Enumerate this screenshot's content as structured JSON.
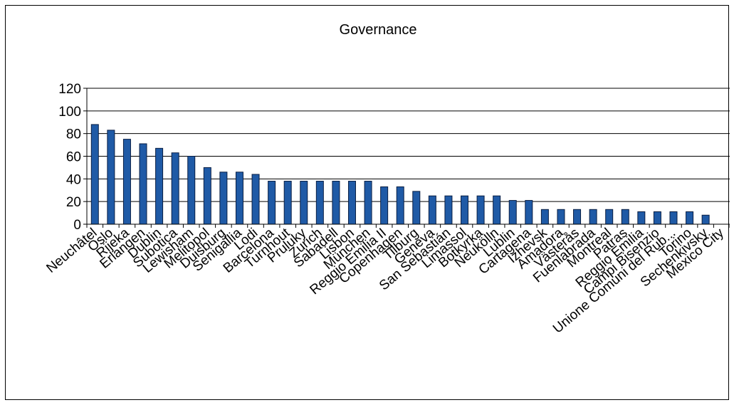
{
  "chart_data": {
    "type": "bar",
    "title": "Governance",
    "xlabel": "",
    "ylabel": "",
    "ylim": [
      0,
      120
    ],
    "yticks": [
      "0",
      "20",
      "40",
      "60",
      "80",
      "100",
      "120"
    ],
    "grid": true,
    "legend": "none",
    "bar_color": "#1f5aa6",
    "categories": [
      "Neuchâtel",
      "Oslo",
      "Rijeka",
      "Erlangen",
      "Dublin",
      "Subotica",
      "Lewisham",
      "Melitopol",
      "Duisburg",
      "Senigallia",
      "Lodi",
      "Barcelona",
      "Turnhout",
      "Pruluky",
      "Zurich",
      "Sabadell",
      "Lisbon",
      "München",
      "Reggio Emilia II",
      "Copenhagen",
      "Tilburg",
      "Geneva",
      "San Sebastián",
      "Limassol",
      "Botkyrka",
      "Neukölln",
      "Lublin",
      "Cartagena",
      "Izhevsk",
      "Amadora",
      "Västerås",
      "Fuenlabrada",
      "Montreal",
      "Patras",
      "Reggio Emilia",
      "Campi Bisenzio",
      "Unione Comuni del Rub...",
      "Torino",
      "Sechenkivsky",
      "Mexico City"
    ],
    "values": [
      88,
      83,
      75,
      71,
      67,
      63,
      60,
      50,
      46,
      46,
      44,
      38,
      38,
      38,
      38,
      38,
      38,
      38,
      33,
      33,
      29,
      25,
      25,
      25,
      25,
      25,
      21,
      21,
      13,
      13,
      13,
      13,
      13,
      13,
      11,
      11,
      11,
      11,
      8,
      0
    ]
  }
}
